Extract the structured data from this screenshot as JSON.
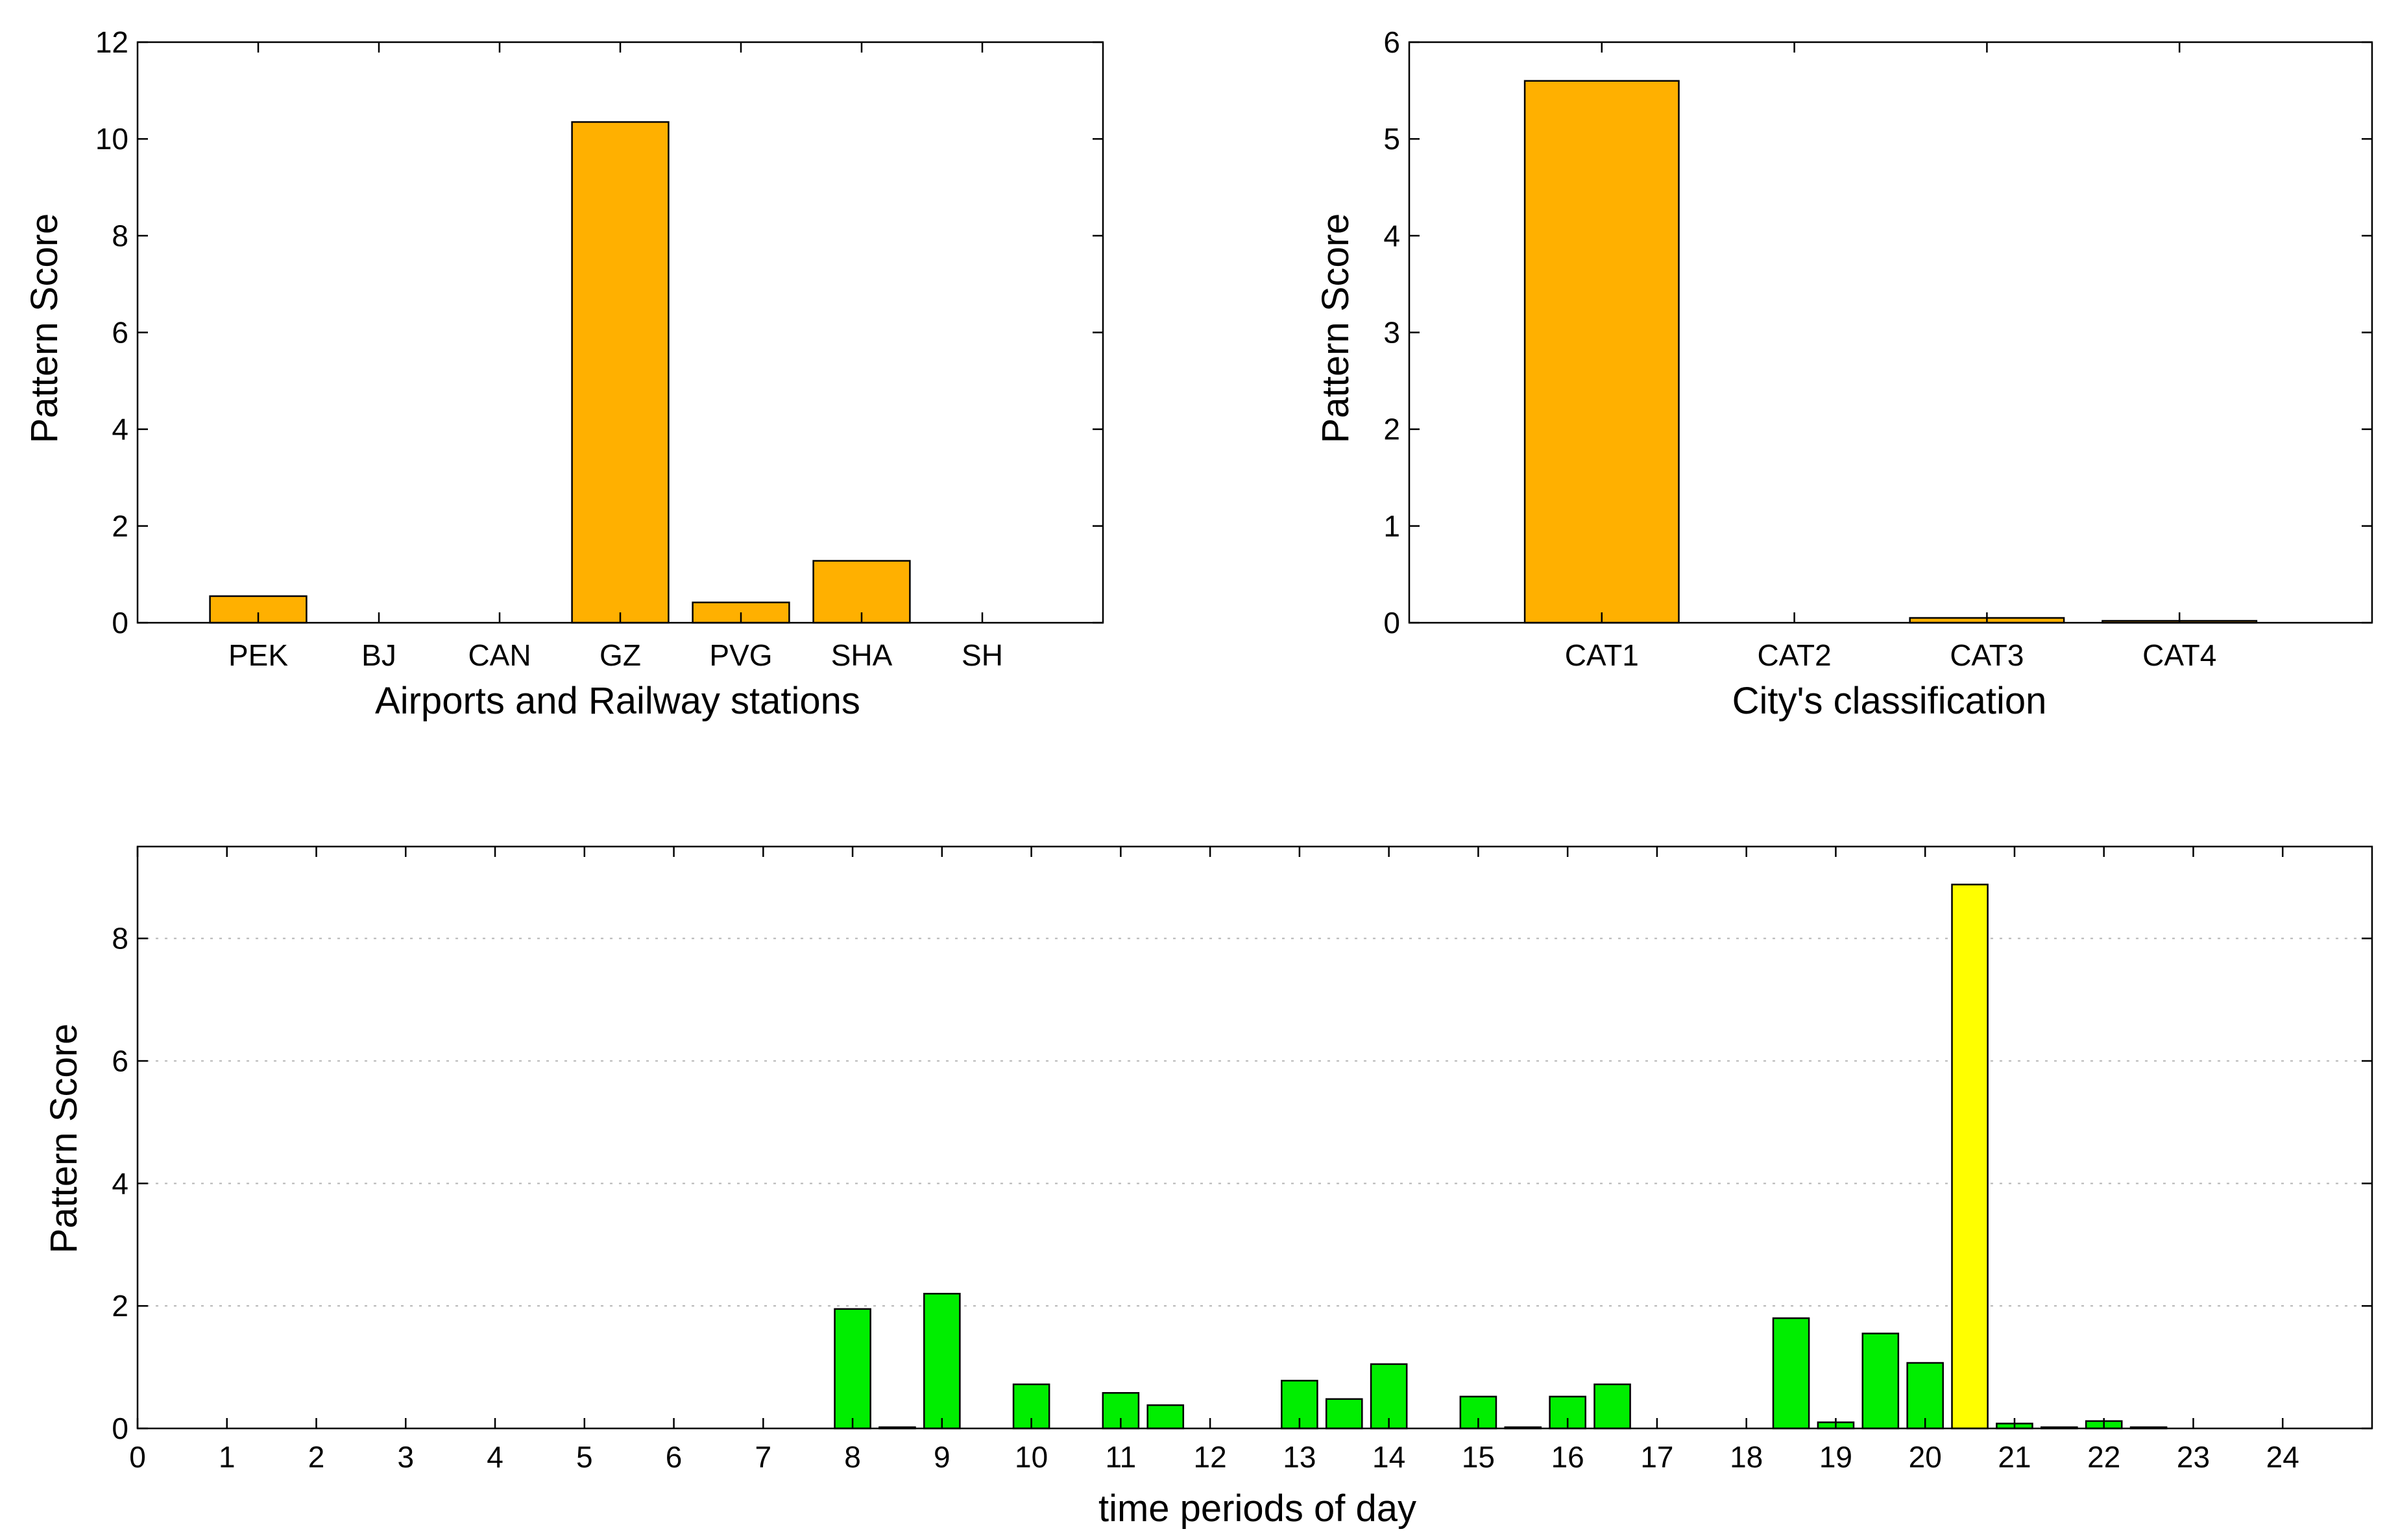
{
  "colors": {
    "orange": "#ffb000",
    "green": "#00ee00",
    "yellow": "#ffff00",
    "axis": "#000000",
    "grid": "#b5b5b5"
  },
  "chart_data": [
    {
      "id": "stations",
      "type": "bar",
      "title": "",
      "xlabel": "Airports and Railway stations",
      "ylabel": "Pattern Score",
      "categories": [
        "PEK",
        "BJ",
        "CAN",
        "GZ",
        "PVG",
        "SHA",
        "SH"
      ],
      "values": [
        0.55,
        0,
        0,
        10.35,
        0.42,
        1.28,
        0
      ],
      "ylim": [
        0,
        12
      ],
      "yticks": [
        "0",
        "2",
        "4",
        "6",
        "8",
        "10",
        "12"
      ],
      "grid": false,
      "bar_color": "#ffb000"
    },
    {
      "id": "city_class",
      "type": "bar",
      "title": "",
      "xlabel": "City's classification",
      "ylabel": "Pattern Score",
      "categories": [
        "CAT1",
        "CAT2",
        "CAT3",
        "CAT4"
      ],
      "values": [
        5.6,
        0,
        0.05,
        0.02
      ],
      "ylim": [
        0,
        6
      ],
      "yticks": [
        "0",
        "1",
        "2",
        "3",
        "4",
        "5",
        "6"
      ],
      "grid": false,
      "bar_color": "#ffb000"
    },
    {
      "id": "time_periods",
      "type": "bar",
      "title": "",
      "xlabel": "time periods of day",
      "ylabel": "Pattern Score",
      "xlim": [
        0,
        25
      ],
      "ylim": [
        0,
        9.5
      ],
      "xticks": [
        "0",
        "1",
        "2",
        "3",
        "4",
        "5",
        "6",
        "7",
        "8",
        "9",
        "10",
        "11",
        "12",
        "13",
        "14",
        "15",
        "16",
        "17",
        "18",
        "19",
        "20",
        "21",
        "22",
        "23",
        "24"
      ],
      "yticks": [
        "0",
        "2",
        "4",
        "6",
        "8"
      ],
      "grid": true,
      "bars": [
        {
          "x": 8.0,
          "value": 1.95,
          "color": "#00ee00"
        },
        {
          "x": 8.5,
          "value": 0.02,
          "color": "#00ee00"
        },
        {
          "x": 9.0,
          "value": 2.2,
          "color": "#00ee00"
        },
        {
          "x": 10.0,
          "value": 0.72,
          "color": "#00ee00"
        },
        {
          "x": 11.0,
          "value": 0.58,
          "color": "#00ee00"
        },
        {
          "x": 11.5,
          "value": 0.38,
          "color": "#00ee00"
        },
        {
          "x": 13.0,
          "value": 0.78,
          "color": "#00ee00"
        },
        {
          "x": 13.5,
          "value": 0.48,
          "color": "#00ee00"
        },
        {
          "x": 14.0,
          "value": 1.05,
          "color": "#00ee00"
        },
        {
          "x": 15.0,
          "value": 0.52,
          "color": "#00ee00"
        },
        {
          "x": 15.5,
          "value": 0.02,
          "color": "#00ee00"
        },
        {
          "x": 16.0,
          "value": 0.52,
          "color": "#00ee00"
        },
        {
          "x": 16.5,
          "value": 0.72,
          "color": "#00ee00"
        },
        {
          "x": 18.5,
          "value": 1.8,
          "color": "#00ee00"
        },
        {
          "x": 19.0,
          "value": 0.1,
          "color": "#00ee00"
        },
        {
          "x": 19.5,
          "value": 1.55,
          "color": "#00ee00"
        },
        {
          "x": 20.0,
          "value": 1.07,
          "color": "#00ee00"
        },
        {
          "x": 20.5,
          "value": 8.88,
          "color": "#ffff00"
        },
        {
          "x": 21.0,
          "value": 0.08,
          "color": "#00ee00"
        },
        {
          "x": 21.5,
          "value": 0.02,
          "color": "#00ee00"
        },
        {
          "x": 22.0,
          "value": 0.12,
          "color": "#00ee00"
        },
        {
          "x": 22.5,
          "value": 0.02,
          "color": "#00ee00"
        }
      ]
    }
  ]
}
